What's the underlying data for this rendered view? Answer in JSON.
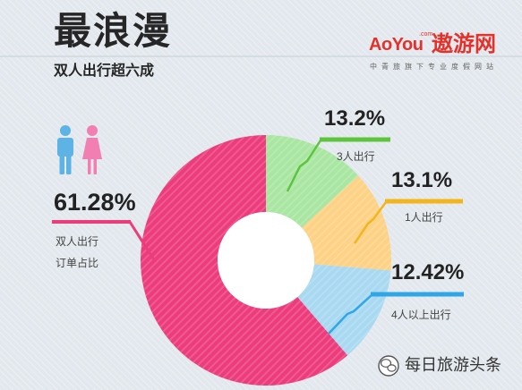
{
  "chart_data": {
    "type": "pie",
    "donut": true,
    "title": "最浪漫",
    "subtitle": "双人出行超六成",
    "slices": [
      {
        "value": 13.2,
        "value_label": "13.2%",
        "label_lines": [
          "3人出行"
        ],
        "color": "#a9e6a2",
        "accent": "#5ec43e"
      },
      {
        "value": 13.1,
        "value_label": "13.1%",
        "label_lines": [
          "1人出行"
        ],
        "color": "#fdd285",
        "accent": "#f3b51c"
      },
      {
        "value": 12.42,
        "value_label": "12.42%",
        "label_lines": [
          "4人以上出行"
        ],
        "color": "#a9d9f1",
        "accent": "#2fa6e6"
      },
      {
        "value": 61.28,
        "value_label": "61.28%",
        "label_lines": [
          "双人出行",
          "订单占比"
        ],
        "color": "#ec3c7b",
        "accent": "#ec3c7b"
      }
    ]
  },
  "logo": {
    "brand": "AoYou",
    "domain": ".com",
    "name": "遨游网",
    "tagline": "中青旅旗下专业度假网站",
    "color": "#e2322b"
  },
  "icons": {
    "male": "male-icon",
    "female": "female-icon",
    "watermark": "wechat-icon"
  },
  "watermark": {
    "text": "每日旅游头条"
  },
  "colors": {
    "background": "#e2e8ed",
    "hole": "#ffffff",
    "male_icon": "#5db3e4",
    "female_icon": "#f27fb2"
  }
}
